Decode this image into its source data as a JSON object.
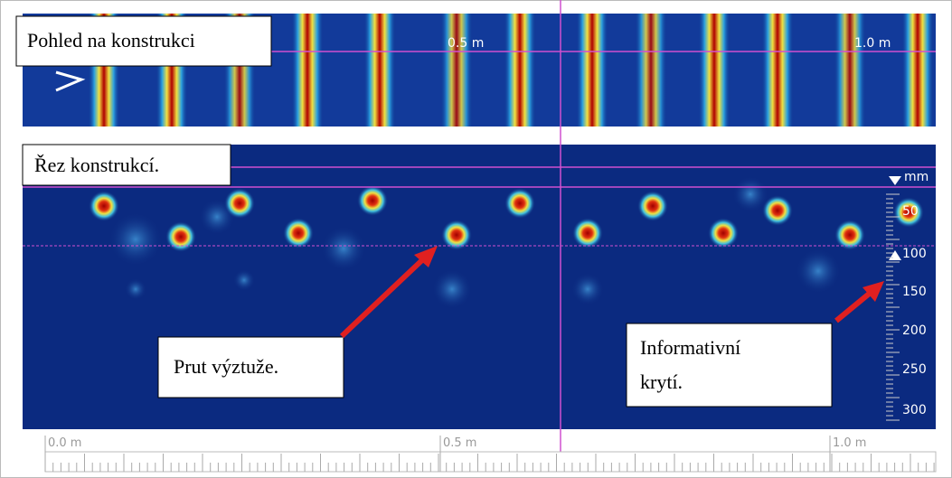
{
  "view": {
    "title": "Pohled na konstrukci",
    "scale_labels": [
      "0.5 m",
      "1.0 m"
    ]
  },
  "section": {
    "title": "Řez konstrukcí.",
    "depth_unit": "mm",
    "depth_labels": [
      "50",
      "100",
      "150",
      "200",
      "250",
      "300"
    ]
  },
  "callouts": {
    "rebar": "Prut výztuže.",
    "cover": [
      "Informativní",
      "krytí."
    ]
  },
  "ruler": {
    "labels": [
      "0.0 m",
      "0.5 m",
      "1.0 m"
    ]
  }
}
